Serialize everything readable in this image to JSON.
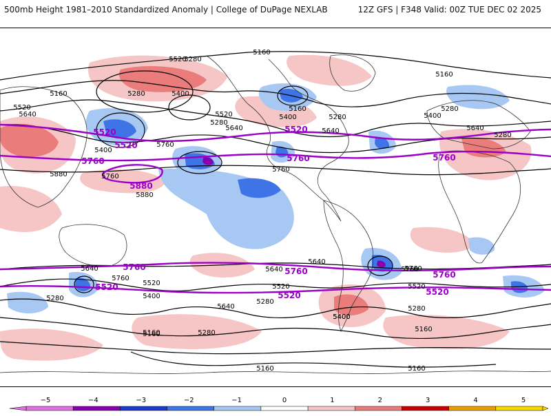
{
  "header": {
    "title": "500mb Height 1981–2010 Standardized Anomaly | College of DuPage NEXLAB",
    "run_info": "12Z GFS | F348 Valid: 00Z TUE DEC 02 2025"
  },
  "colors": {
    "contour": "#000000",
    "highlight_contour": "#9b00c8",
    "map_outline": "#333333",
    "background": "#ffffff"
  },
  "map": {
    "contour_labels": [
      {
        "text": "5160"
      },
      {
        "text": "5160"
      },
      {
        "text": "5160"
      },
      {
        "text": "5160"
      },
      {
        "text": "5280"
      },
      {
        "text": "5280"
      },
      {
        "text": "5280"
      },
      {
        "text": "5280"
      },
      {
        "text": "5280"
      },
      {
        "text": "5280"
      },
      {
        "text": "5280"
      },
      {
        "text": "5520"
      },
      {
        "text": "5520"
      },
      {
        "text": "5520"
      },
      {
        "text": "5400"
      },
      {
        "text": "5400"
      },
      {
        "text": "5400"
      },
      {
        "text": "5400"
      },
      {
        "text": "5640"
      },
      {
        "text": "5640"
      },
      {
        "text": "5640"
      },
      {
        "text": "5640"
      },
      {
        "text": "5760"
      },
      {
        "text": "5760"
      },
      {
        "text": "5760"
      },
      {
        "text": "5880"
      },
      {
        "text": "5880"
      },
      {
        "text": "5160"
      },
      {
        "text": "5640"
      },
      {
        "text": "5760"
      },
      {
        "text": "5640"
      },
      {
        "text": "5520"
      },
      {
        "text": "5400"
      },
      {
        "text": "5280"
      },
      {
        "text": "5760"
      },
      {
        "text": "5520"
      },
      {
        "text": "5640"
      },
      {
        "text": "5400"
      },
      {
        "text": "5280"
      },
      {
        "text": "5160"
      },
      {
        "text": "5160"
      },
      {
        "text": "5160"
      },
      {
        "text": "5160"
      },
      {
        "text": "5520"
      },
      {
        "text": "5280"
      },
      {
        "text": "5640"
      },
      {
        "text": "5760"
      },
      {
        "text": "5400"
      }
    ],
    "highlight_labels": [
      {
        "text": "5520"
      },
      {
        "text": "5520"
      },
      {
        "text": "5520"
      },
      {
        "text": "5760"
      },
      {
        "text": "5760"
      },
      {
        "text": "5760"
      },
      {
        "text": "5880"
      },
      {
        "text": "5760"
      },
      {
        "text": "5760"
      },
      {
        "text": "5760"
      },
      {
        "text": "5520"
      },
      {
        "text": "5520"
      },
      {
        "text": "5520"
      }
    ]
  },
  "colorbar": {
    "ticks": [
      "−5",
      "−4",
      "−3",
      "−2",
      "−1",
      "0",
      "1",
      "2",
      "3",
      "4",
      "5"
    ],
    "colors": [
      "#e070e0",
      "#8a00b0",
      "#1a3cc8",
      "#3f74e6",
      "#a8c8f4",
      "#ffffff",
      "#f6c6c6",
      "#ea7c7c",
      "#c80000",
      "#e8a000",
      "#f8d800"
    ]
  }
}
